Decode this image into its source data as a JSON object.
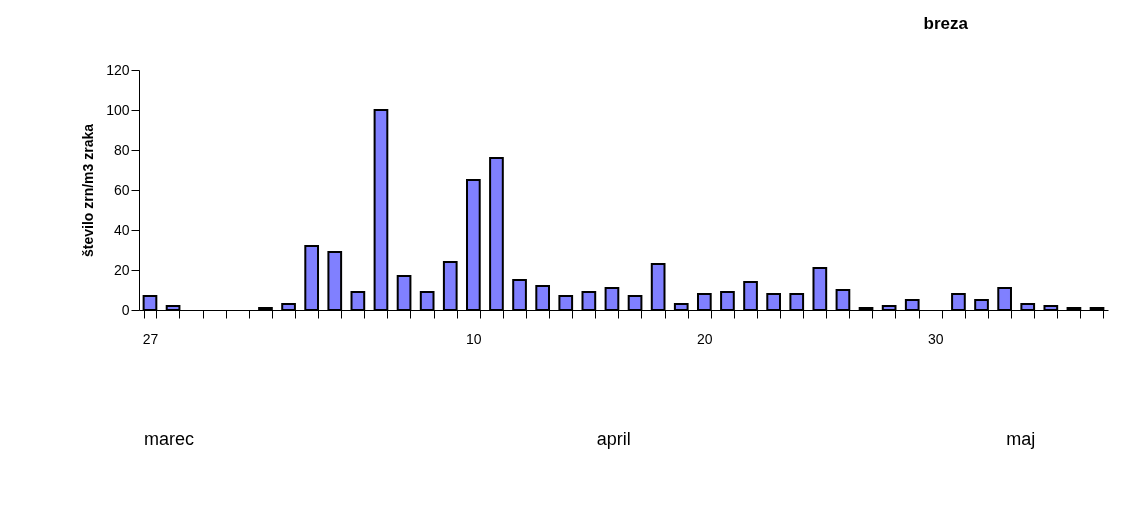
{
  "chart_data": {
    "type": "bar",
    "title": "breza",
    "ylabel": "število zrn/m3 zraka",
    "categories": [
      "27",
      null,
      null,
      null,
      null,
      null,
      null,
      null,
      null,
      null,
      null,
      null,
      null,
      null,
      "10",
      null,
      null,
      null,
      null,
      null,
      null,
      null,
      null,
      null,
      "20",
      null,
      null,
      null,
      null,
      null,
      null,
      null,
      null,
      null,
      "30",
      null,
      null,
      null,
      null,
      null,
      null,
      null
    ],
    "values": [
      7,
      2,
      null,
      null,
      null,
      1,
      3,
      32,
      29,
      9,
      100,
      17,
      9,
      24,
      65,
      76,
      15,
      12,
      7,
      9,
      11,
      7,
      23,
      3,
      8,
      9,
      14,
      8,
      8,
      21,
      10,
      1,
      2,
      5,
      null,
      8,
      5,
      11,
      3,
      2,
      1,
      1
    ],
    "color": "#8080ff",
    "ylim": [
      0,
      120
    ],
    "yticks": [
      0,
      20,
      40,
      60,
      80,
      100,
      120
    ],
    "grid": false,
    "annotations": [
      "marec",
      "april",
      "maj"
    ]
  }
}
